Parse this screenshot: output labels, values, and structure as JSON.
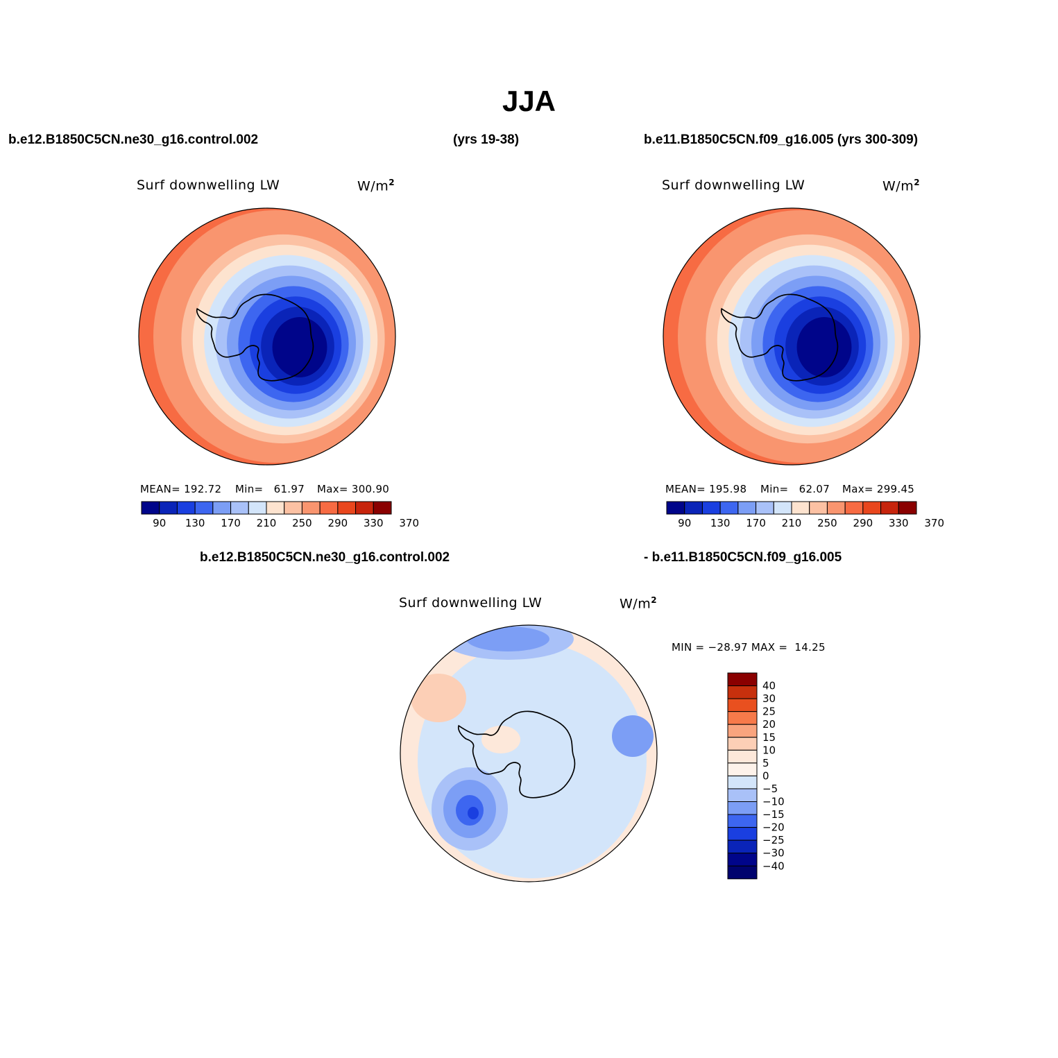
{
  "title": "JJA",
  "header": {
    "case_left": "b.e12.B1850C5CN.ne30_g16.control.002",
    "years_left": "(yrs 19-38)",
    "case_right": "b.e11.B1850C5CN.f09_g16.005 (yrs 300-309)"
  },
  "panels": [
    {
      "variable": "Surf downwelling LW",
      "units": "W/m",
      "units_sup": "2",
      "stats": {
        "mean_label": "MEAN=",
        "mean": "192.72",
        "min_label": "Min=",
        "min": "61.97",
        "max_label": "Max=",
        "max": "300.90"
      }
    },
    {
      "variable": "Surf downwelling LW",
      "units": "W/m",
      "units_sup": "2",
      "stats": {
        "mean_label": "MEAN=",
        "mean": "195.98",
        "min_label": "Min=",
        "min": "62.07",
        "max_label": "Max=",
        "max": "299.45"
      }
    },
    {
      "case_a": "b.e12.B1850C5CN.ne30_g16.control.002",
      "case_b": "- b.e11.B1850C5CN.f09_g16.005",
      "variable": "Surf downwelling LW",
      "units": "W/m",
      "units_sup": "2",
      "stats": {
        "min_label": "MIN =",
        "min": "−28.97",
        "max_label": "MAX =",
        "max": "14.25"
      }
    }
  ],
  "colorbar_abs": {
    "colors": [
      "#00058a",
      "#0a24b8",
      "#1a3fe0",
      "#3d66f0",
      "#7c9ef5",
      "#a9c1f8",
      "#d3e5fa",
      "#fde3cf",
      "#fcc1a3",
      "#f9956f",
      "#f76b43",
      "#e9461d",
      "#c7240c",
      "#8a0000"
    ],
    "labels": [
      "90",
      "130",
      "170",
      "210",
      "250",
      "290",
      "330",
      "370"
    ]
  },
  "colorbar_diff": {
    "colors": [
      "#00058a",
      "#0a24b8",
      "#1a3fe0",
      "#3d66f0",
      "#7c9ef5",
      "#a9c1f8",
      "#d3e5fa",
      "#fde8da",
      "#fccfb6",
      "#f9a47e",
      "#f77a4a",
      "#e9501f",
      "#c7300d",
      "#8a0000"
    ],
    "labels": [
      "40",
      "30",
      "25",
      "20",
      "15",
      "10",
      "5",
      "0",
      "−5",
      "−10",
      "−15",
      "−20",
      "−25",
      "−30",
      "−40"
    ]
  },
  "map_fill": {
    "abs_rings": [
      "#f9956f",
      "#fcc1a3",
      "#fde3cf",
      "#d3e5fa",
      "#a9c1f8",
      "#7c9ef5",
      "#3d66f0",
      "#1a3fe0",
      "#0a24b8",
      "#00058a"
    ],
    "diff_background": "#fde8da",
    "diff_blue_light": "#d3e5fa",
    "diff_blue_mid": "#a9c1f8",
    "diff_blue_strong": "#7c9ef5",
    "diff_blue_deep": "#3d66f0",
    "diff_blue_core": "#1a3fe0",
    "diff_red_light": "#fccfb6"
  }
}
